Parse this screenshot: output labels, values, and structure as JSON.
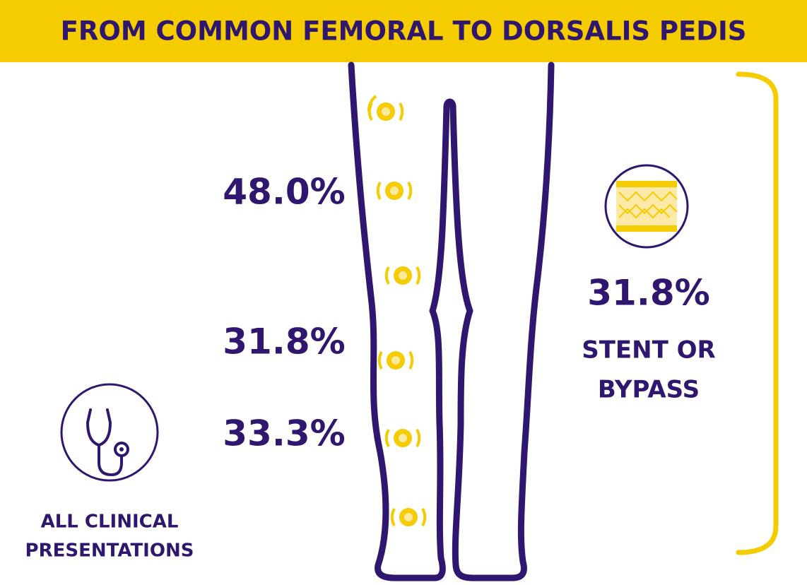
{
  "header": {
    "title": "FROM COMMON FEMORAL TO DORSALIS PEDIS"
  },
  "stats": [
    "48.0%",
    "31.8%",
    "33.3%"
  ],
  "intervention": {
    "value": "31.8%",
    "lines": [
      "STENT OR",
      "BYPASS"
    ]
  },
  "presentation": {
    "lines": [
      "ALL CLINICAL",
      "PRESENTATIONS"
    ]
  }
}
